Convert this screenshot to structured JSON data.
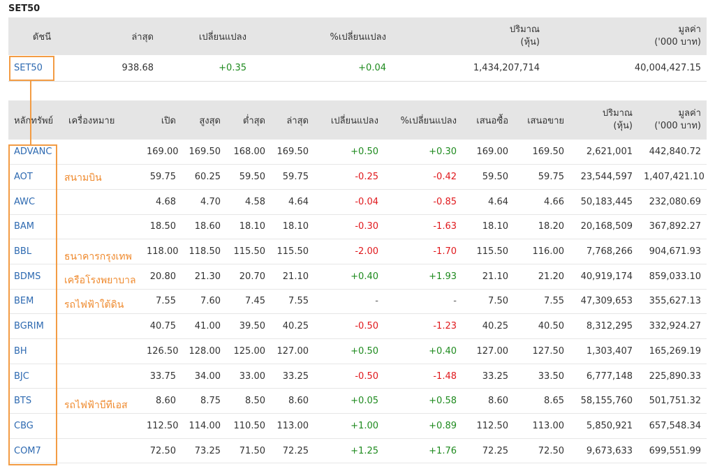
{
  "page_title": "SET50",
  "index_table": {
    "headers": {
      "index": "ดัชนี",
      "last": "ล่าสุด",
      "change": "เปลี่ยนแปลง",
      "pct_change": "%เปลี่ยนแปลง",
      "volume_line1": "ปริมาณ",
      "volume_line2": "(หุ้น)",
      "value_line1": "มูลค่า",
      "value_line2": "('000 บาท)"
    },
    "row": {
      "index": "SET50",
      "last": "938.68",
      "change": "+0.35",
      "pct_change": "+0.04",
      "volume": "1,434,207,714",
      "value": "40,004,427.15"
    }
  },
  "stock_table": {
    "headers": {
      "symbol": "หลักทรัพย์",
      "brand": "เครื่องหมาย",
      "open": "เปิด",
      "high": "สูงสุด",
      "low": "ต่ำสุด",
      "last": "ล่าสุด",
      "change": "เปลี่ยนแปลง",
      "pct_change": "%เปลี่ยนแปลง",
      "bid": "เสนอซื้อ",
      "offer": "เสนอขาย",
      "volume_line1": "ปริมาณ",
      "volume_line2": "(หุ้น)",
      "value_line1": "มูลค่า",
      "value_line2": "('000 บาท)"
    },
    "rows": [
      {
        "symbol": "ADVANC",
        "open": "169.00",
        "high": "169.50",
        "low": "168.00",
        "last": "169.50",
        "change": "+0.50",
        "pct": "+0.30",
        "bid": "169.00",
        "offer": "169.50",
        "volume": "2,621,001",
        "value": "442,840.72"
      },
      {
        "symbol": "AOT",
        "open": "59.75",
        "high": "60.25",
        "low": "59.50",
        "last": "59.75",
        "change": "-0.25",
        "pct": "-0.42",
        "bid": "59.50",
        "offer": "59.75",
        "volume": "23,544,597",
        "value": "1,407,421.10"
      },
      {
        "symbol": "AWC",
        "open": "4.68",
        "high": "4.70",
        "low": "4.58",
        "last": "4.64",
        "change": "-0.04",
        "pct": "-0.85",
        "bid": "4.64",
        "offer": "4.66",
        "volume": "50,183,445",
        "value": "232,080.69"
      },
      {
        "symbol": "BAM",
        "open": "18.50",
        "high": "18.60",
        "low": "18.10",
        "last": "18.10",
        "change": "-0.30",
        "pct": "-1.63",
        "bid": "18.10",
        "offer": "18.20",
        "volume": "20,168,509",
        "value": "367,892.27"
      },
      {
        "symbol": "BBL",
        "open": "118.00",
        "high": "118.50",
        "low": "115.50",
        "last": "115.50",
        "change": "-2.00",
        "pct": "-1.70",
        "bid": "115.50",
        "offer": "116.00",
        "volume": "7,768,266",
        "value": "904,671.93"
      },
      {
        "symbol": "BDMS",
        "open": "20.80",
        "high": "21.30",
        "low": "20.70",
        "last": "21.10",
        "change": "+0.40",
        "pct": "+1.93",
        "bid": "21.10",
        "offer": "21.20",
        "volume": "40,919,174",
        "value": "859,033.10"
      },
      {
        "symbol": "BEM",
        "open": "7.55",
        "high": "7.60",
        "low": "7.45",
        "last": "7.55",
        "change": "-",
        "pct": "-",
        "bid": "7.50",
        "offer": "7.55",
        "volume": "47,309,653",
        "value": "355,627.13"
      },
      {
        "symbol": "BGRIM",
        "open": "40.75",
        "high": "41.00",
        "low": "39.50",
        "last": "40.25",
        "change": "-0.50",
        "pct": "-1.23",
        "bid": "40.25",
        "offer": "40.50",
        "volume": "8,312,295",
        "value": "332,924.27"
      },
      {
        "symbol": "BH",
        "open": "126.50",
        "high": "128.00",
        "low": "125.00",
        "last": "127.00",
        "change": "+0.50",
        "pct": "+0.40",
        "bid": "127.00",
        "offer": "127.50",
        "volume": "1,303,407",
        "value": "165,269.19"
      },
      {
        "symbol": "BJC",
        "open": "33.75",
        "high": "34.00",
        "low": "33.00",
        "last": "33.25",
        "change": "-0.50",
        "pct": "-1.48",
        "bid": "33.25",
        "offer": "33.50",
        "volume": "6,777,148",
        "value": "225,890.33"
      },
      {
        "symbol": "BTS",
        "open": "8.60",
        "high": "8.75",
        "low": "8.50",
        "last": "8.60",
        "change": "+0.05",
        "pct": "+0.58",
        "bid": "8.60",
        "offer": "8.65",
        "volume": "58,155,760",
        "value": "501,751.32"
      },
      {
        "symbol": "CBG",
        "open": "112.50",
        "high": "114.00",
        "low": "110.50",
        "last": "113.00",
        "change": "+1.00",
        "pct": "+0.89",
        "bid": "112.50",
        "offer": "113.00",
        "volume": "5,850,921",
        "value": "657,548.34"
      },
      {
        "symbol": "COM7",
        "open": "72.50",
        "high": "73.25",
        "low": "71.50",
        "last": "72.25",
        "change": "+1.25",
        "pct": "+1.76",
        "bid": "72.25",
        "offer": "72.50",
        "volume": "9,673,633",
        "value": "699,551.99"
      }
    ]
  },
  "annotations": {
    "aot": "สนามบิน",
    "bbl": "ธนาคารกรุงเทพ",
    "bdms": "เครือโรงพยาบาล",
    "bem": "รถไฟฟ้าใต้ดิน",
    "bts": "รถไฟฟ้าบีทีเอส"
  },
  "colors": {
    "symbol_link": "#2e6ab1",
    "positive": "#1e8a1e",
    "negative": "#e0181c",
    "annotation": "#ef8a2e",
    "header_bg": "#e5e5e5"
  }
}
